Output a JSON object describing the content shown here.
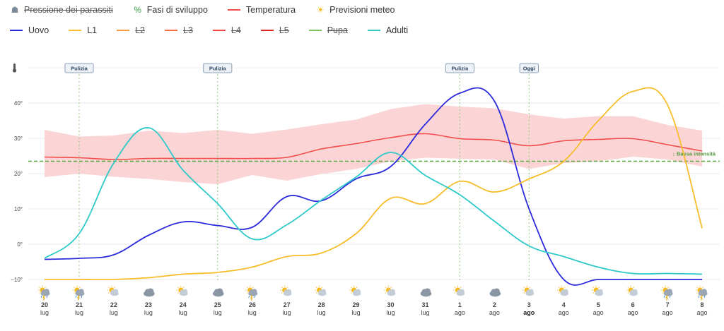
{
  "legend": {
    "row1": [
      {
        "label": "Pressione dei parassiti",
        "icon": "parasite-pressure-icon",
        "glyph": "☗",
        "color": "#7a8a99",
        "active": false
      },
      {
        "label": "Fasi di sviluppo",
        "icon": "development-phases-icon",
        "glyph": "%",
        "color": "#3d9b47",
        "active": true
      },
      {
        "label": "Temperatura",
        "icon": "temperature-line",
        "color": "#f24c4c",
        "active": true
      },
      {
        "label": "Previsioni meteo",
        "icon": "sun-icon",
        "glyph": "☀",
        "color": "#f4b400",
        "active": true
      }
    ],
    "row2": [
      {
        "label": "Uovo",
        "color": "#2d2adb",
        "active": true
      },
      {
        "label": "L1",
        "color": "#f7bd2b",
        "active": true
      },
      {
        "label": "L2",
        "color": "#f49a3a",
        "active": false
      },
      {
        "label": "L3",
        "color": "#f46a3a",
        "active": false
      },
      {
        "label": "L4",
        "color": "#f24444",
        "active": false
      },
      {
        "label": "L5",
        "color": "#e02424",
        "active": false
      },
      {
        "label": "Pupa",
        "color": "#7cc35f",
        "active": false
      },
      {
        "label": "Adulti",
        "color": "#2ec9c9",
        "active": true
      }
    ]
  },
  "thermometer_icon": "thermometer-icon",
  "chart_data": {
    "type": "line",
    "y_ticks": [
      "−10°",
      "0°",
      "10°",
      "20°",
      "30°",
      "40°"
    ],
    "ylim": [
      -10,
      50
    ],
    "x_days": [
      "20",
      "21",
      "22",
      "23",
      "24",
      "25",
      "26",
      "27",
      "28",
      "29",
      "30",
      "31",
      "1",
      "2",
      "3",
      "4",
      "5",
      "6",
      "7",
      "8"
    ],
    "x_months": [
      "lug",
      "lug",
      "lug",
      "lug",
      "lug",
      "lug",
      "lug",
      "lug",
      "lug",
      "lug",
      "lug",
      "lug",
      "ago",
      "ago",
      "ago",
      "ago",
      "ago",
      "ago",
      "ago",
      "ago"
    ],
    "today_index": 14,
    "weather_icons": [
      "storm",
      "storm",
      "sun-cloud",
      "cloud",
      "sun-cloud",
      "cloud",
      "storm",
      "sun-cloud",
      "sun-cloud",
      "sun-cloud",
      "sun-cloud",
      "cloud",
      "sun-cloud",
      "cloud",
      "sun-cloud",
      "sun-cloud",
      "sun-cloud",
      "sun-cloud",
      "storm",
      "storm"
    ],
    "markers": [
      {
        "label": "Pulizia",
        "x": 1
      },
      {
        "label": "Pulizia",
        "x": 5
      },
      {
        "label": "Pulizia",
        "x": 12
      },
      {
        "label": "Oggi",
        "x": 14
      }
    ],
    "threshold": {
      "value": 23.5,
      "label": "↓ Bassa intensità",
      "color": "#5aa83f"
    },
    "temperature": {
      "name": "Temperatura",
      "color": "#f24c4c",
      "band_color": "#fbd0d0",
      "avg": [
        [
          0,
          24.7
        ],
        [
          1,
          24.5
        ],
        [
          2,
          24
        ],
        [
          3,
          24.3
        ],
        [
          4,
          24.3
        ],
        [
          5,
          24.3
        ],
        [
          6,
          24.3
        ],
        [
          7,
          24.6
        ],
        [
          8,
          27
        ],
        [
          9,
          28.5
        ],
        [
          10,
          30.2
        ],
        [
          11,
          31.3
        ],
        [
          12,
          29.9
        ],
        [
          13,
          29.5
        ],
        [
          14,
          27.9
        ],
        [
          15,
          29.3
        ],
        [
          16,
          29.7
        ],
        [
          17,
          29.9
        ],
        [
          18,
          28.2
        ],
        [
          19,
          26.4
        ]
      ],
      "max": [
        [
          0,
          32.4
        ],
        [
          1,
          30.5
        ],
        [
          2,
          30.8
        ],
        [
          3,
          32.2
        ],
        [
          4,
          31.5
        ],
        [
          5,
          32.4
        ],
        [
          6,
          31.3
        ],
        [
          7,
          32.5
        ],
        [
          8,
          34
        ],
        [
          9,
          35.3
        ],
        [
          10,
          38.3
        ],
        [
          11,
          39.7
        ],
        [
          12,
          39
        ],
        [
          13,
          38.5
        ],
        [
          14,
          36.8
        ],
        [
          15,
          35.6
        ],
        [
          16,
          36.3
        ],
        [
          17,
          36.3
        ],
        [
          18,
          33.8
        ],
        [
          19,
          32.2
        ]
      ],
      "min": [
        [
          0,
          19
        ],
        [
          1,
          20
        ],
        [
          2,
          19.1
        ],
        [
          3,
          18.5
        ],
        [
          4,
          17.6
        ],
        [
          5,
          17
        ],
        [
          6,
          19.6
        ],
        [
          7,
          18
        ],
        [
          8,
          19.9
        ],
        [
          9,
          21.3
        ],
        [
          10,
          23.5
        ],
        [
          11,
          24.5
        ],
        [
          12,
          24.2
        ],
        [
          13,
          24
        ],
        [
          14,
          21.3
        ],
        [
          15,
          23
        ],
        [
          16,
          23.5
        ],
        [
          17,
          24.8
        ],
        [
          18,
          24
        ],
        [
          19,
          22
        ]
      ]
    },
    "series": [
      {
        "name": "Uovo",
        "color": "#2d2adb",
        "points": [
          [
            0,
            -4.3
          ],
          [
            1,
            -4
          ],
          [
            2,
            -3
          ],
          [
            3,
            2.5
          ],
          [
            4,
            6.3
          ],
          [
            5,
            5.3
          ],
          [
            6,
            4.8
          ],
          [
            7,
            13.5
          ],
          [
            8,
            12.3
          ],
          [
            9,
            18.5
          ],
          [
            10,
            22
          ],
          [
            11,
            34
          ],
          [
            12,
            42.8
          ],
          [
            13,
            40.5
          ],
          [
            14,
            10
          ],
          [
            15,
            -10
          ],
          [
            16,
            -10
          ],
          [
            17,
            -10
          ],
          [
            18,
            -10
          ],
          [
            19,
            -10
          ]
        ]
      },
      {
        "name": "L1",
        "color": "#f7bd2b",
        "points": [
          [
            0,
            -10
          ],
          [
            1,
            -10
          ],
          [
            2,
            -10
          ],
          [
            3,
            -9.5
          ],
          [
            4,
            -8.5
          ],
          [
            5,
            -8
          ],
          [
            6,
            -6.5
          ],
          [
            7,
            -3.5
          ],
          [
            8,
            -2.5
          ],
          [
            9,
            3
          ],
          [
            10,
            13
          ],
          [
            11,
            11.5
          ],
          [
            12,
            17.8
          ],
          [
            13,
            14.8
          ],
          [
            14,
            18.5
          ],
          [
            15,
            23.5
          ],
          [
            16,
            35
          ],
          [
            17,
            43.3
          ],
          [
            18,
            39.5
          ],
          [
            19,
            4.5
          ]
        ]
      },
      {
        "name": "Adulti",
        "color": "#2ec9c9",
        "points": [
          [
            0,
            -4
          ],
          [
            1,
            3
          ],
          [
            2,
            23
          ],
          [
            3,
            33
          ],
          [
            4,
            21
          ],
          [
            5,
            11.5
          ],
          [
            6,
            1.5
          ],
          [
            7,
            5.5
          ],
          [
            8,
            12.5
          ],
          [
            9,
            19
          ],
          [
            10,
            26
          ],
          [
            11,
            19.5
          ],
          [
            12,
            14
          ],
          [
            13,
            6.5
          ],
          [
            14,
            -0.5
          ],
          [
            15,
            -3.5
          ],
          [
            16,
            -6.5
          ],
          [
            17,
            -8.3
          ],
          [
            18,
            -8.3
          ],
          [
            19,
            -8.5
          ]
        ]
      }
    ]
  }
}
